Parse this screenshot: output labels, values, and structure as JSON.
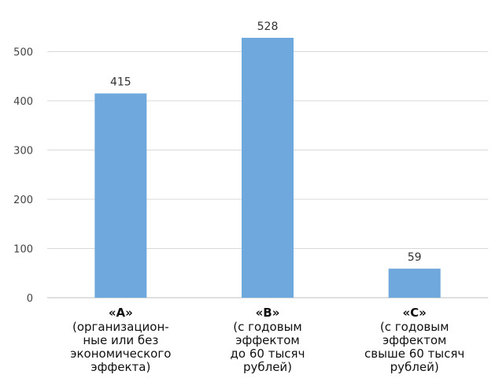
{
  "chart_data": {
    "type": "bar",
    "categories": [
      "«A»",
      "«B»",
      "«C»"
    ],
    "category_details": [
      [
        "(организацион-",
        "ные или без",
        "экономического",
        "эффекта)"
      ],
      [
        "(с годовым",
        "эффектом",
        "до 60 тысяч",
        "рублей)"
      ],
      [
        "(с годовым",
        "эффектом",
        "свыше 60 тысяч",
        "рублей)"
      ]
    ],
    "values": [
      415,
      528,
      59
    ],
    "data_labels": [
      "415",
      "528",
      "59"
    ],
    "yticks": [
      0,
      100,
      200,
      300,
      400,
      500
    ],
    "ylim": [
      0,
      560
    ],
    "grid": true,
    "bar_color": "#6fa8dc"
  }
}
